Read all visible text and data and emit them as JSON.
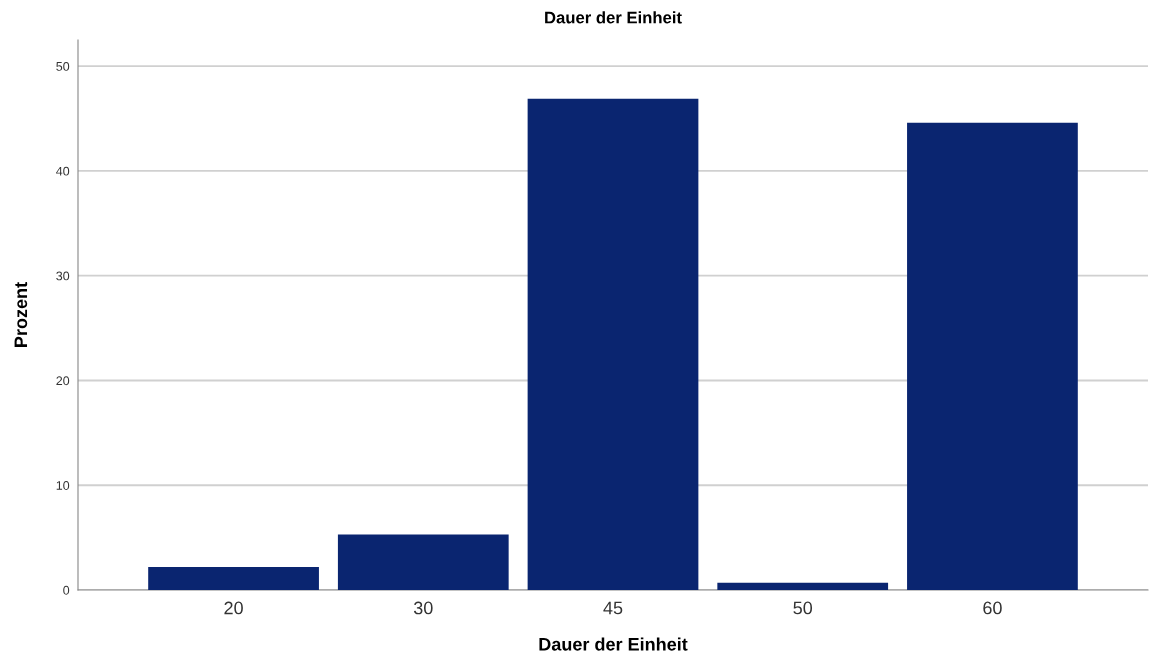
{
  "chart_data": {
    "type": "bar",
    "title": "Dauer der Einheit",
    "xlabel": "Dauer der Einheit",
    "ylabel": "Prozent",
    "categories": [
      "20",
      "30",
      "45",
      "50",
      "60"
    ],
    "values": [
      2.2,
      5.3,
      46.9,
      0.7,
      44.6
    ],
    "color": "#0a2570",
    "ylim": [
      0,
      52.5
    ],
    "yticks": [
      0,
      10,
      20,
      30,
      40,
      50
    ],
    "grid": "y"
  }
}
